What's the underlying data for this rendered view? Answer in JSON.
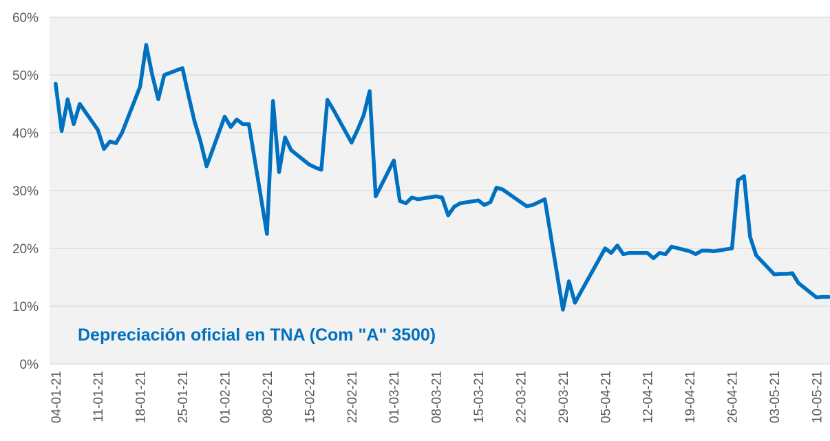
{
  "chart_data": {
    "type": "line",
    "x": [
      "04-01-21",
      "05-01-21",
      "06-01-21",
      "07-01-21",
      "08-01-21",
      "11-01-21",
      "12-01-21",
      "13-01-21",
      "14-01-21",
      "15-01-21",
      "18-01-21",
      "19-01-21",
      "20-01-21",
      "21-01-21",
      "22-01-21",
      "25-01-21",
      "26-01-21",
      "27-01-21",
      "28-01-21",
      "29-01-21",
      "01-02-21",
      "02-02-21",
      "03-02-21",
      "04-02-21",
      "05-02-21",
      "08-02-21",
      "09-02-21",
      "10-02-21",
      "11-02-21",
      "12-02-21",
      "15-02-21",
      "16-02-21",
      "17-02-21",
      "18-02-21",
      "19-02-21",
      "22-02-21",
      "23-02-21",
      "24-02-21",
      "25-02-21",
      "26-02-21",
      "01-03-21",
      "02-03-21",
      "03-03-21",
      "04-03-21",
      "05-03-21",
      "08-03-21",
      "09-03-21",
      "10-03-21",
      "11-03-21",
      "12-03-21",
      "15-03-21",
      "16-03-21",
      "17-03-21",
      "18-03-21",
      "19-03-21",
      "22-03-21",
      "23-03-21",
      "24-03-21",
      "25-03-21",
      "26-03-21",
      "29-03-21",
      "30-03-21",
      "31-03-21",
      "01-04-21",
      "05-04-21",
      "06-04-21",
      "07-04-21",
      "08-04-21",
      "09-04-21",
      "12-04-21",
      "13-04-21",
      "14-04-21",
      "15-04-21",
      "16-04-21",
      "19-04-21",
      "20-04-21",
      "21-04-21",
      "22-04-21",
      "23-04-21",
      "26-04-21",
      "27-04-21",
      "28-04-21",
      "29-04-21",
      "30-04-21",
      "03-05-21",
      "04-05-21",
      "05-05-21",
      "06-05-21",
      "07-05-21",
      "10-05-21",
      "11-05-21",
      "12-05-21"
    ],
    "series": [
      {
        "name": "Depreciación oficial en TNA (Com \"A\" 3500)",
        "color": "#0070c0",
        "values": [
          48.5,
          40.3,
          45.8,
          41.5,
          45.0,
          40.5,
          37.2,
          38.5,
          38.2,
          40.0,
          48.0,
          55.2,
          50.0,
          45.8,
          50.0,
          51.2,
          46.5,
          42.0,
          38.5,
          34.2,
          42.8,
          41.0,
          42.3,
          41.5,
          41.5,
          22.5,
          45.5,
          33.2,
          39.2,
          37.0,
          34.5,
          34.0,
          33.6,
          45.7,
          44.0,
          38.3,
          40.5,
          43.0,
          47.2,
          29.0,
          35.2,
          28.2,
          27.8,
          28.8,
          28.5,
          29.0,
          28.8,
          25.7,
          27.2,
          27.8,
          28.3,
          27.5,
          28.0,
          30.5,
          30.2,
          28.0,
          27.3,
          27.5,
          28.0,
          28.5,
          9.4,
          14.3,
          10.6,
          12.5,
          20.0,
          19.2,
          20.5,
          19.0,
          19.2,
          19.2,
          18.3,
          19.2,
          19.0,
          20.3,
          19.5,
          19.0,
          19.6,
          19.6,
          19.5,
          20.0,
          31.8,
          32.5,
          22.0,
          18.8,
          15.5,
          15.6,
          15.6,
          15.7,
          14.0,
          11.5,
          11.6,
          11.6
        ]
      }
    ],
    "xlim": [
      "03-01-21",
      "12-05-21"
    ],
    "xticks": [
      "04-01-21",
      "11-01-21",
      "18-01-21",
      "25-01-21",
      "01-02-21",
      "08-02-21",
      "15-02-21",
      "22-02-21",
      "01-03-21",
      "08-03-21",
      "15-03-21",
      "22-03-21",
      "29-03-21",
      "05-04-21",
      "12-04-21",
      "19-04-21",
      "26-04-21",
      "03-05-21",
      "10-05-21"
    ],
    "ylim": [
      0,
      60
    ],
    "yticks": [
      {
        "value": 0,
        "label": "0%"
      },
      {
        "value": 10,
        "label": "10%"
      },
      {
        "value": 20,
        "label": "20%"
      },
      {
        "value": 30,
        "label": "30%"
      },
      {
        "value": 40,
        "label": "40%"
      },
      {
        "value": 50,
        "label": "50%"
      },
      {
        "value": 60,
        "label": "60%"
      }
    ],
    "grid": true
  }
}
